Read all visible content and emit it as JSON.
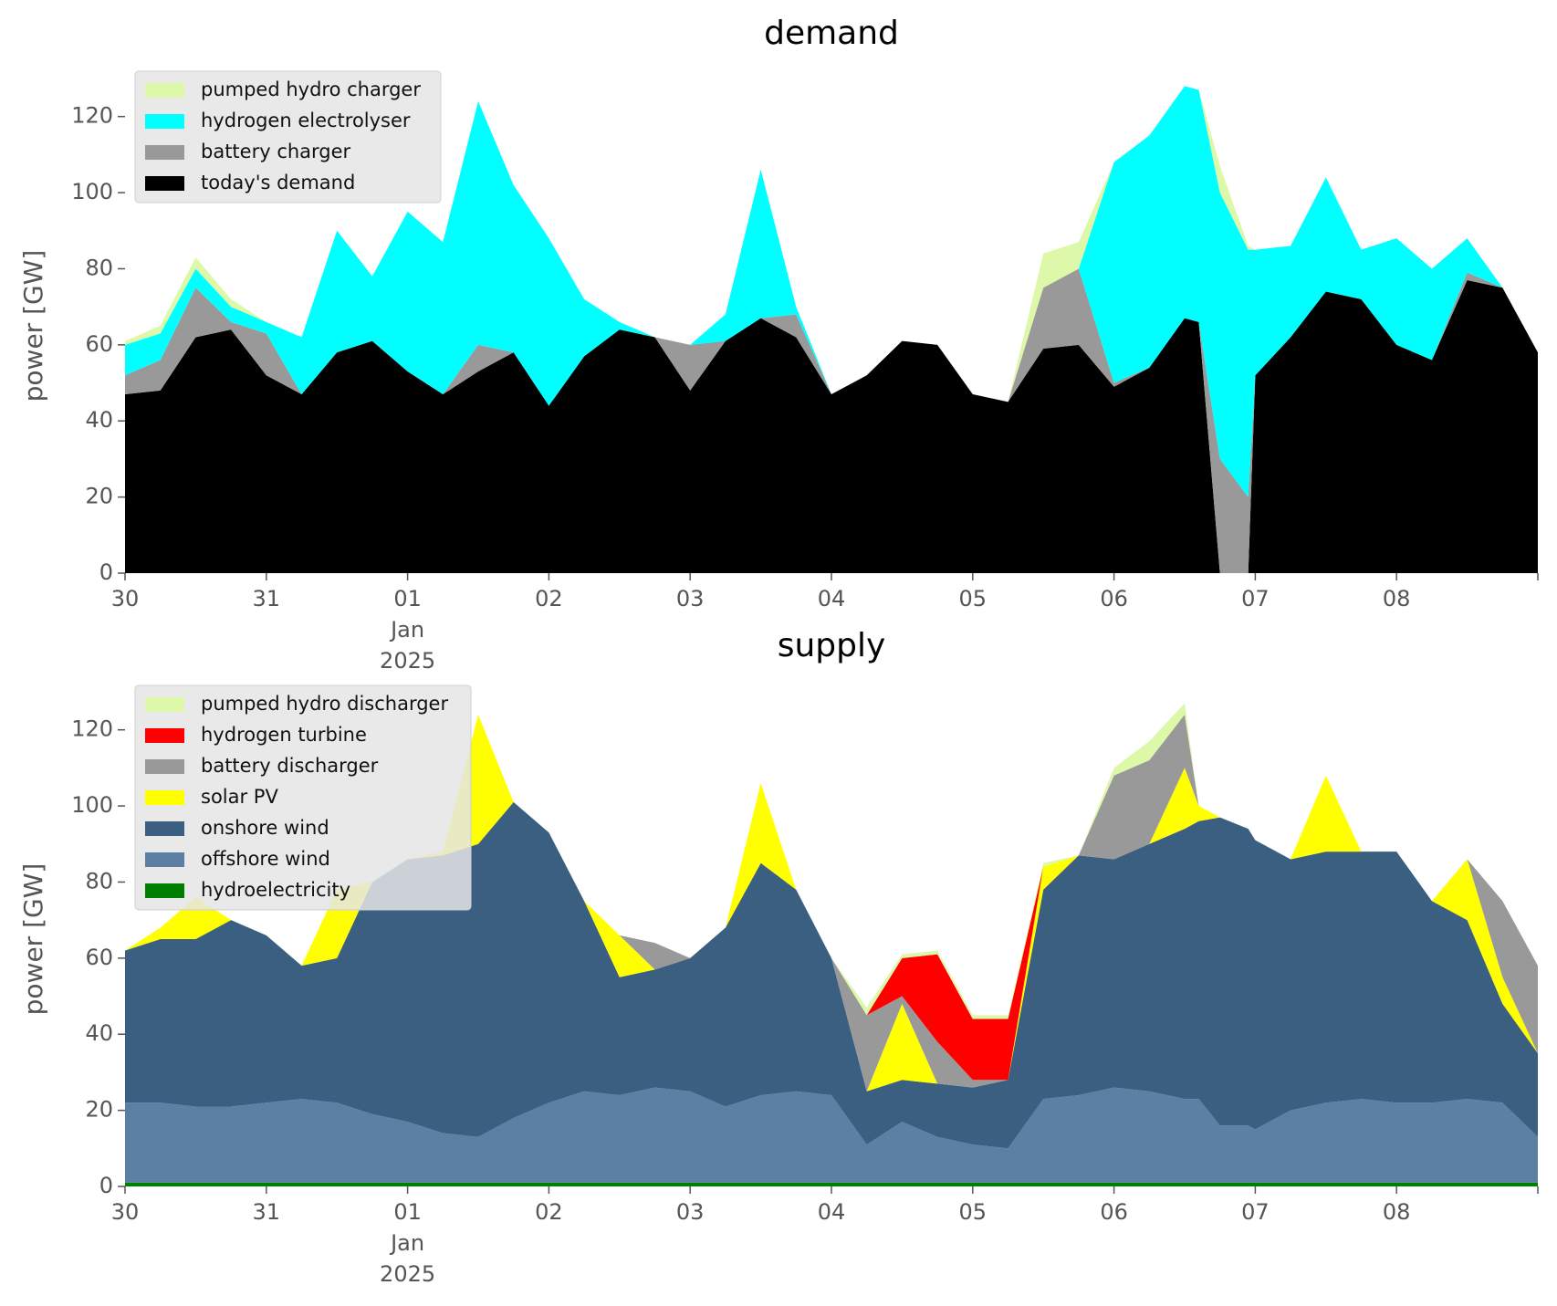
{
  "chart_data": [
    {
      "type": "stacked_area",
      "title": "demand",
      "y_label": "power [GW]",
      "legend": "upper left",
      "x": [
        0,
        0.25,
        0.5,
        0.75,
        1,
        1.25,
        1.5,
        1.75,
        2,
        2.25,
        2.5,
        2.75,
        3,
        3.25,
        3.5,
        3.75,
        4,
        4.25,
        4.5,
        4.75,
        5,
        5.25,
        5.5,
        5.75,
        6,
        6.25,
        6.5,
        6.75,
        7,
        7.25,
        7.5,
        7.6,
        7.75,
        7.95,
        8,
        8.25,
        8.5,
        8.75,
        9,
        9.25,
        9.5,
        9.75,
        10
      ],
      "xlim": [
        0,
        10
      ],
      "xticks": [
        {
          "value": 0,
          "label": "30"
        },
        {
          "value": 1,
          "label": "31"
        },
        {
          "value": 2,
          "label": "01\nJan\n2025"
        },
        {
          "value": 3,
          "label": "02"
        },
        {
          "value": 4,
          "label": "03"
        },
        {
          "value": 5,
          "label": "04"
        },
        {
          "value": 6,
          "label": "05"
        },
        {
          "value": 7,
          "label": "06"
        },
        {
          "value": 8,
          "label": "07"
        },
        {
          "value": 9,
          "label": "08"
        },
        {
          "value": 10,
          "label": ""
        }
      ],
      "ylim": [
        0,
        130
      ],
      "yticks": [
        0,
        20,
        40,
        60,
        80,
        100,
        120
      ],
      "series": [
        {
          "name": "pumped hydro charger",
          "color": "#dcf8a8",
          "values": [
            1,
            2,
            3,
            2,
            0,
            0,
            0,
            0,
            0,
            0,
            0,
            0,
            0,
            0,
            0,
            0,
            0,
            0,
            0,
            0,
            0,
            0,
            0,
            0,
            0,
            0,
            9,
            7,
            0,
            0,
            0,
            0,
            7,
            1,
            0,
            0,
            0,
            0,
            0,
            0,
            0,
            0,
            0
          ]
        },
        {
          "name": "hydrogen electrolyser",
          "color": "#00ffff",
          "values": [
            8,
            7,
            5,
            4,
            3,
            15,
            32,
            17,
            42,
            40,
            64,
            44,
            44,
            15,
            2,
            0,
            0,
            7,
            39,
            2,
            0,
            0,
            0,
            0,
            0,
            0,
            0,
            0,
            58,
            61,
            61,
            61,
            70,
            65,
            33,
            24,
            30,
            13,
            28,
            24,
            9,
            0,
            0
          ]
        },
        {
          "name": "battery charger",
          "color": "#999999",
          "values": [
            5,
            8,
            13,
            2,
            11,
            0,
            0,
            0,
            0,
            0,
            7,
            0,
            0,
            0,
            0,
            0,
            12,
            0,
            0,
            6,
            0,
            0,
            0,
            0,
            0,
            0,
            16,
            20,
            1,
            0,
            0,
            0,
            30,
            20,
            0,
            0,
            0,
            0,
            0,
            0,
            2,
            0,
            0
          ]
        },
        {
          "name": "today's demand",
          "color": "#000000",
          "values": [
            47,
            48,
            62,
            64,
            52,
            47,
            58,
            61,
            53,
            47,
            53,
            58,
            44,
            57,
            64,
            62,
            48,
            61,
            67,
            62,
            47,
            52,
            61,
            60,
            47,
            45,
            59,
            60,
            49,
            54,
            67,
            66,
            0,
            0,
            52,
            62,
            74,
            72,
            60,
            56,
            77,
            75,
            58
          ]
        }
      ]
    },
    {
      "type": "stacked_area",
      "title": "supply",
      "y_label": "power [GW]",
      "legend": "upper left",
      "x": [
        0,
        0.25,
        0.5,
        0.75,
        1,
        1.25,
        1.5,
        1.75,
        2,
        2.25,
        2.5,
        2.75,
        3,
        3.25,
        3.5,
        3.75,
        4,
        4.25,
        4.5,
        4.75,
        5,
        5.25,
        5.5,
        5.75,
        6,
        6.25,
        6.5,
        6.75,
        7,
        7.25,
        7.5,
        7.6,
        7.75,
        7.95,
        8,
        8.25,
        8.5,
        8.75,
        9,
        9.25,
        9.5,
        9.75,
        10
      ],
      "xlim": [
        0,
        10
      ],
      "xticks": [
        {
          "value": 0,
          "label": "30"
        },
        {
          "value": 1,
          "label": "31"
        },
        {
          "value": 2,
          "label": "01\nJan\n2025"
        },
        {
          "value": 3,
          "label": "02"
        },
        {
          "value": 4,
          "label": "03"
        },
        {
          "value": 5,
          "label": "04"
        },
        {
          "value": 6,
          "label": "05"
        },
        {
          "value": 7,
          "label": "06"
        },
        {
          "value": 8,
          "label": "07"
        },
        {
          "value": 9,
          "label": "08"
        },
        {
          "value": 10,
          "label": ""
        }
      ],
      "ylim": [
        0,
        130
      ],
      "yticks": [
        0,
        20,
        40,
        60,
        80,
        100,
        120
      ],
      "series": [
        {
          "name": "pumped hydro discharger",
          "color": "#dcf8a8",
          "values": [
            0,
            0,
            0,
            0,
            0,
            0,
            0,
            0,
            0,
            0,
            0,
            0,
            0,
            0,
            0,
            0,
            0,
            0,
            0,
            0,
            0,
            2,
            1,
            1,
            1,
            1,
            1,
            0,
            2,
            5,
            3,
            0,
            0,
            0,
            0,
            0,
            0,
            0,
            0,
            0,
            0,
            0,
            0
          ]
        },
        {
          "name": "hydrogen turbine",
          "color": "#ff0000",
          "values": [
            0,
            0,
            0,
            0,
            0,
            0,
            0,
            0,
            0,
            0,
            0,
            0,
            0,
            0,
            0,
            0,
            0,
            0,
            0,
            0,
            0,
            0,
            10,
            23,
            16,
            16,
            0,
            0,
            0,
            0,
            0,
            0,
            0,
            0,
            0,
            0,
            0,
            0,
            0,
            0,
            0,
            0,
            0
          ]
        },
        {
          "name": "battery discharger",
          "color": "#999999",
          "values": [
            0,
            0,
            0,
            0,
            0,
            0,
            0,
            0,
            0,
            0,
            0,
            0,
            0,
            0,
            0,
            7,
            0,
            0,
            0,
            0,
            0,
            20,
            2,
            11,
            2,
            0,
            0,
            0,
            22,
            22,
            14,
            0,
            0,
            0,
            0,
            0,
            0,
            0,
            0,
            0,
            0,
            20,
            23
          ]
        },
        {
          "name": "solar PV",
          "color": "#ffff00",
          "values": [
            0,
            3,
            11,
            0,
            0,
            0,
            18,
            0,
            0,
            1,
            34,
            0,
            0,
            0,
            11,
            0,
            0,
            0,
            21,
            0,
            0,
            0,
            20,
            0,
            0,
            0,
            6,
            0,
            0,
            0,
            16,
            4,
            0,
            0,
            0,
            0,
            20,
            0,
            0,
            0,
            16,
            7,
            0
          ]
        },
        {
          "name": "onshore wind",
          "color": "#3b5f80",
          "values": [
            40,
            43,
            44,
            49,
            44,
            35,
            38,
            61,
            69,
            73,
            77,
            83,
            71,
            50,
            31,
            31,
            35,
            47,
            61,
            53,
            36,
            14,
            11,
            14,
            15,
            18,
            55,
            63,
            60,
            65,
            71,
            73,
            81,
            78,
            76,
            66,
            66,
            65,
            66,
            53,
            47,
            26,
            22
          ]
        },
        {
          "name": "offshore wind",
          "color": "#5b80a3",
          "values": [
            21,
            21,
            20,
            20,
            21,
            22,
            21,
            18,
            16,
            13,
            12,
            17,
            21,
            24,
            23,
            25,
            24,
            20,
            23,
            24,
            23,
            10,
            16,
            12,
            10,
            9,
            22,
            23,
            25,
            24,
            22,
            22,
            15,
            15,
            14,
            19,
            21,
            22,
            21,
            21,
            22,
            21,
            12
          ]
        },
        {
          "name": "hydroelectricity",
          "color": "#008000",
          "values": [
            1,
            1,
            1,
            1,
            1,
            1,
            1,
            1,
            1,
            1,
            1,
            1,
            1,
            1,
            1,
            1,
            1,
            1,
            1,
            1,
            1,
            1,
            1,
            1,
            1,
            1,
            1,
            1,
            1,
            1,
            1,
            1,
            1,
            1,
            1,
            1,
            1,
            1,
            1,
            1,
            1,
            1,
            1
          ]
        }
      ]
    }
  ]
}
